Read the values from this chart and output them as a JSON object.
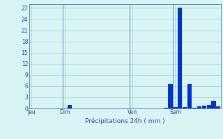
{
  "title": "Précipitations 24h ( mm )",
  "bar_color": "#0033cc",
  "bg_color": "#d8f4f4",
  "grid_color": "#aacccc",
  "axis_label_color": "#3344aa",
  "tick_label_color": "#3344aa",
  "spine_color": "#6688aa",
  "ylim": [
    0,
    28
  ],
  "yticks": [
    0,
    3,
    6,
    9,
    12,
    15,
    18,
    21,
    24,
    27
  ],
  "num_bars": 40,
  "bar_values": [
    0,
    0,
    0,
    0,
    0,
    0,
    0,
    0,
    1.0,
    0,
    0,
    0,
    0,
    0,
    0,
    0,
    0,
    0,
    0,
    0,
    0,
    0,
    0,
    0,
    0,
    0,
    0,
    0,
    0.2,
    6.5,
    0.3,
    27.0,
    0.4,
    6.5,
    0.1,
    0.5,
    0.8,
    1.0,
    2.0,
    0.5
  ],
  "day_ticks": [
    0,
    7,
    21,
    30
  ],
  "day_labels": [
    "Jeu",
    "Dim",
    "Ven",
    "Sam"
  ],
  "day_vlines": [
    0,
    7,
    21,
    30
  ]
}
